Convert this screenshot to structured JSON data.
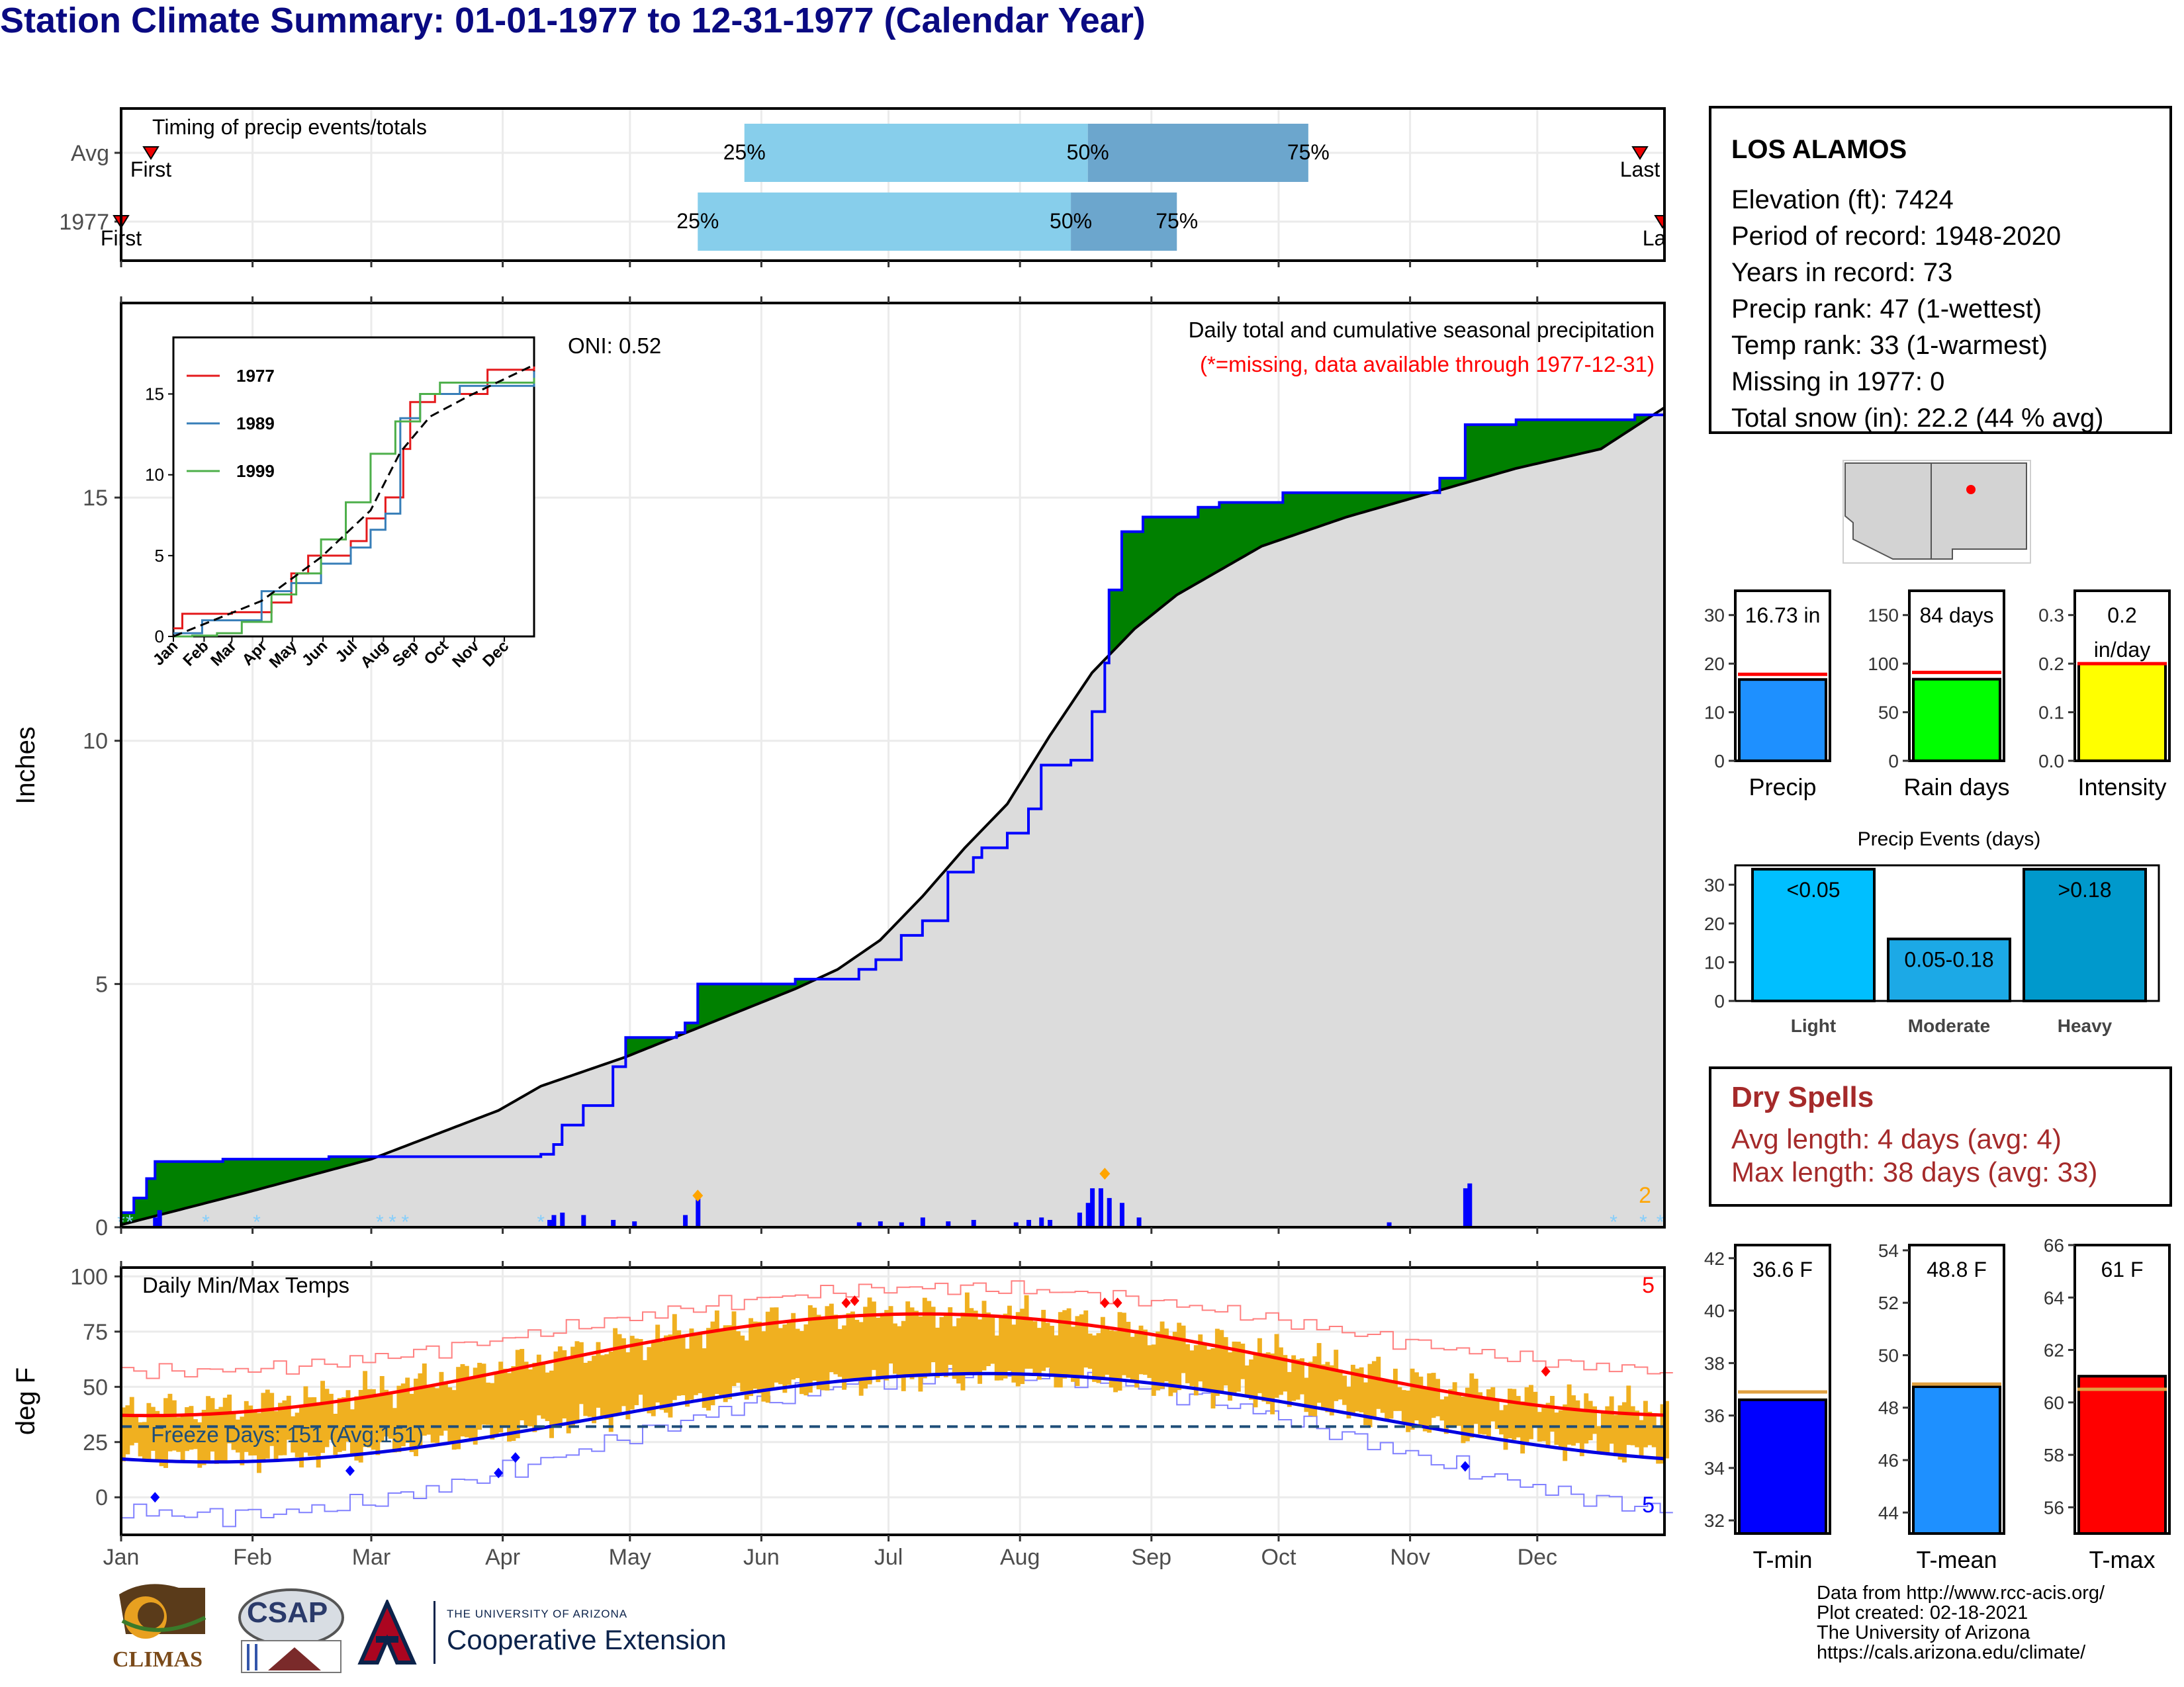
{
  "title": "Station Climate Summary: 01-01-1977 to 12-31-1977 (Calendar Year)",
  "colors": {
    "title": "#0a0a82",
    "above_avg": "#008000",
    "below_avg": "#7b5210",
    "cumulative_fill": "#dcdcdc",
    "precip_bar": "#0000ff",
    "temp_bar": "#f0b020",
    "tmax_smooth": "#ff0000",
    "tmin_smooth": "#0000e0",
    "dry_spell_text": "#a52a2a"
  },
  "station": {
    "name": "LOS ALAMOS",
    "lines": [
      "Elevation (ft): 7424",
      "Period of record: 1948-2020",
      "Years in record: 73",
      "Precip rank: 47 (1-wettest)",
      "Temp rank: 33 (1-warmest)",
      "Missing in 1977: 0",
      "Total snow (in): 22.2 (44 % avg)"
    ]
  },
  "dry_spells": {
    "title": "Dry Spells",
    "avg": "Avg length: 4 days (avg: 4)",
    "max": "Max length: 38 days (avg: 33)"
  },
  "credits": [
    "Data from http://www.rcc-acis.org/",
    "Plot created: 02-18-2021",
    "The University of Arizona",
    "https://cals.arizona.edu/climate/"
  ],
  "logos": {
    "climas": "CLIMAS",
    "csap": "CSAP",
    "ua_small": "THE UNIVERSITY OF ARIZONA",
    "ua_large": "Cooperative Extension"
  },
  "month_labels": [
    "Jan",
    "Feb",
    "Mar",
    "Apr",
    "May",
    "Jun",
    "Jul",
    "Aug",
    "Sep",
    "Oct",
    "Nov",
    "Dec"
  ],
  "chart_data": [
    {
      "id": "timing",
      "type": "bar",
      "title": "Timing of precip events/totals",
      "rows": [
        {
          "label": "Avg",
          "first": "First",
          "last": "Last",
          "p25_day": 148,
          "p50_day": 229,
          "p75_day": 281,
          "p25_text": "25%",
          "p50_text": "50%",
          "p75_text": "75%"
        },
        {
          "label": "1977",
          "first": "First",
          "last": "Last",
          "p25_day": 137,
          "p50_day": 225,
          "p75_day": 250,
          "p25_text": "25%",
          "p50_text": "50%",
          "p75_text": "75%"
        }
      ]
    },
    {
      "id": "cumulative",
      "type": "area",
      "ylabel": "Inches",
      "ylim": [
        0,
        19
      ],
      "yticks": [
        0,
        5,
        10,
        15
      ],
      "annotation_title": "Daily total and cumulative seasonal precipitation",
      "annotation_missing": "(*=missing, data available through 1977-12-31)",
      "oni": "ONI: 0.52",
      "max_daily_label": "2",
      "series_1977_cumulative": [
        [
          1,
          0.3
        ],
        [
          4,
          0.6
        ],
        [
          7,
          1.0
        ],
        [
          9,
          1.35
        ],
        [
          25,
          1.4
        ],
        [
          50,
          1.45
        ],
        [
          62,
          1.45
        ],
        [
          73,
          1.45
        ],
        [
          100,
          1.5
        ],
        [
          103,
          1.7
        ],
        [
          105,
          2.1
        ],
        [
          110,
          2.5
        ],
        [
          117,
          3.3
        ],
        [
          120,
          3.9
        ],
        [
          132,
          4.0
        ],
        [
          134,
          4.2
        ],
        [
          137,
          5.0
        ],
        [
          160,
          5.1
        ],
        [
          175,
          5.3
        ],
        [
          179,
          5.5
        ],
        [
          185,
          6.0
        ],
        [
          190,
          6.3
        ],
        [
          196,
          7.3
        ],
        [
          202,
          7.6
        ],
        [
          204,
          7.8
        ],
        [
          210,
          8.1
        ],
        [
          215,
          8.6
        ],
        [
          218,
          9.5
        ],
        [
          225,
          9.6
        ],
        [
          230,
          10.6
        ],
        [
          233,
          11.6
        ],
        [
          234,
          13.1
        ],
        [
          237,
          14.3
        ],
        [
          242,
          14.6
        ],
        [
          255,
          14.8
        ],
        [
          260,
          14.9
        ],
        [
          275,
          15.1
        ],
        [
          300,
          15.1
        ],
        [
          312,
          15.4
        ],
        [
          318,
          16.5
        ],
        [
          330,
          16.6
        ],
        [
          358,
          16.7
        ],
        [
          365,
          16.73
        ]
      ],
      "series_avg_cumulative": [
        [
          1,
          0.05
        ],
        [
          30,
          0.7
        ],
        [
          60,
          1.4
        ],
        [
          90,
          2.4
        ],
        [
          100,
          2.9
        ],
        [
          120,
          3.5
        ],
        [
          140,
          4.2
        ],
        [
          160,
          4.9
        ],
        [
          170,
          5.3
        ],
        [
          180,
          5.9
        ],
        [
          190,
          6.8
        ],
        [
          200,
          7.8
        ],
        [
          210,
          8.7
        ],
        [
          220,
          10.1
        ],
        [
          230,
          11.4
        ],
        [
          240,
          12.3
        ],
        [
          250,
          13.0
        ],
        [
          270,
          14.0
        ],
        [
          290,
          14.6
        ],
        [
          310,
          15.1
        ],
        [
          330,
          15.6
        ],
        [
          350,
          16.0
        ],
        [
          365,
          16.85
        ]
      ],
      "daily_precip_highlights": [
        [
          9,
          0.2
        ],
        [
          10,
          0.35
        ],
        [
          102,
          0.15
        ],
        [
          103,
          0.25
        ],
        [
          105,
          0.3
        ],
        [
          110,
          0.25
        ],
        [
          117,
          0.15
        ],
        [
          122,
          0.12
        ],
        [
          134,
          0.25
        ],
        [
          137,
          0.6
        ],
        [
          175,
          0.1
        ],
        [
          180,
          0.12
        ],
        [
          185,
          0.1
        ],
        [
          190,
          0.2
        ],
        [
          196,
          0.12
        ],
        [
          202,
          0.15
        ],
        [
          212,
          0.1
        ],
        [
          215,
          0.15
        ],
        [
          218,
          0.2
        ],
        [
          220,
          0.15
        ],
        [
          227,
          0.3
        ],
        [
          229,
          0.5
        ],
        [
          230,
          0.8
        ],
        [
          232,
          0.8
        ],
        [
          234,
          0.6
        ],
        [
          237,
          0.5
        ],
        [
          241,
          0.2
        ],
        [
          300,
          0.1
        ],
        [
          318,
          0.8
        ],
        [
          319,
          0.9
        ]
      ],
      "inset": {
        "type": "line",
        "yticks": [
          0,
          5,
          10,
          15
        ],
        "months": [
          "Jan",
          "Feb",
          "Mar",
          "Apr",
          "May",
          "Jun",
          "Jul",
          "Aug",
          "Sep",
          "Oct",
          "Nov",
          "Dec"
        ],
        "series": [
          {
            "name": "1977",
            "color": "#e41a1c",
            "values": [
              [
                1,
                0.5
              ],
              [
                10,
                1.4
              ],
              [
                60,
                1.5
              ],
              [
                100,
                2.1
              ],
              [
                120,
                3.9
              ],
              [
                137,
                5.0
              ],
              [
                180,
                5.9
              ],
              [
                196,
                7.3
              ],
              [
                215,
                8.6
              ],
              [
                233,
                11.6
              ],
              [
                240,
                14.5
              ],
              [
                265,
                15.0
              ],
              [
                318,
                16.5
              ],
              [
                365,
                16.7
              ]
            ]
          },
          {
            "name": "1989",
            "color": "#377eb8",
            "values": [
              [
                1,
                0.2
              ],
              [
                30,
                1.0
              ],
              [
                90,
                2.8
              ],
              [
                120,
                3.3
              ],
              [
                150,
                4.5
              ],
              [
                180,
                5.5
              ],
              [
                200,
                6.6
              ],
              [
                215,
                7.6
              ],
              [
                230,
                13.5
              ],
              [
                250,
                15.0
              ],
              [
                290,
                15.5
              ],
              [
                365,
                16.4
              ]
            ]
          },
          {
            "name": "1999",
            "color": "#4daf4a",
            "values": [
              [
                1,
                0
              ],
              [
                20,
                0.05
              ],
              [
                45,
                0.2
              ],
              [
                70,
                0.9
              ],
              [
                100,
                2.6
              ],
              [
                125,
                3.9
              ],
              [
                150,
                6.0
              ],
              [
                175,
                8.3
              ],
              [
                200,
                11.3
              ],
              [
                225,
                13.3
              ],
              [
                250,
                15.0
              ],
              [
                270,
                15.7
              ],
              [
                365,
                16.0
              ]
            ]
          }
        ],
        "avg_dashed": [
          [
            1,
            0
          ],
          [
            90,
            2.2
          ],
          [
            150,
            4.9
          ],
          [
            200,
            7.8
          ],
          [
            230,
            11.4
          ],
          [
            260,
            13.6
          ],
          [
            300,
            14.9
          ],
          [
            365,
            16.8
          ]
        ]
      }
    },
    {
      "id": "temps",
      "type": "line",
      "title": "Daily Min/Max Temps",
      "ylabel": "deg F",
      "ylim": [
        -17,
        104
      ],
      "yticks": [
        0,
        25,
        50,
        75,
        100
      ],
      "freeze_line": 32,
      "freeze_label": "Freeze Days: 151 (Avg:151)",
      "record_high_count": "5",
      "record_low_count": "5"
    },
    {
      "id": "summary_bars",
      "type": "bar",
      "panels": [
        {
          "name": "Precip",
          "value_text": "16.73 in",
          "value": 16.73,
          "avg": 17.8,
          "ymax": 35,
          "yticks": [
            0,
            10,
            20,
            30
          ],
          "color": "#1e90ff"
        },
        {
          "name": "Rain days",
          "value_text": "84 days",
          "value": 84,
          "avg": 91,
          "ymax": 175,
          "yticks": [
            0,
            50,
            100,
            150
          ],
          "color": "#00ff00"
        },
        {
          "name": "Intensity",
          "value_text": "0.2\nin/day",
          "value_line1": "0.2",
          "value_line2": "in/day",
          "value": 0.2,
          "avg": 0.2,
          "ymax": 0.35,
          "yticks": [
            "0.0",
            "0.1",
            "0.2",
            "0.3"
          ],
          "color": "#ffff00"
        }
      ]
    },
    {
      "id": "precip_events",
      "type": "bar",
      "title": "Precip Events (days)",
      "ymax": 35,
      "yticks": [
        0,
        10,
        20,
        30
      ],
      "categories": [
        "Light",
        "Moderate",
        "Heavy"
      ],
      "labels": [
        "<0.05",
        "0.05-0.18",
        ">0.18"
      ],
      "values": [
        34,
        16,
        34
      ],
      "colors": [
        "#00bfff",
        "#1ca9e6",
        "#0099cc"
      ]
    },
    {
      "id": "temp_bars",
      "type": "bar",
      "panels": [
        {
          "name": "T-min",
          "value_text": "36.6 F",
          "value": 36.6,
          "avg": 36.9,
          "ymin": 31.5,
          "ymax": 42.5,
          "yticks": [
            32,
            34,
            36,
            38,
            40,
            42
          ],
          "color": "#0000ff"
        },
        {
          "name": "T-mean",
          "value_text": "48.8 F",
          "value": 48.8,
          "avg": 48.9,
          "ymin": 43.2,
          "ymax": 54.2,
          "yticks": [
            44,
            46,
            48,
            50,
            52,
            54
          ],
          "color": "#1e90ff"
        },
        {
          "name": "T-max",
          "value_text": "61 F",
          "value": 61,
          "avg": 60.5,
          "ymin": 55,
          "ymax": 66,
          "yticks": [
            56,
            58,
            60,
            62,
            64,
            66
          ],
          "color": "#ff0000"
        }
      ]
    }
  ]
}
